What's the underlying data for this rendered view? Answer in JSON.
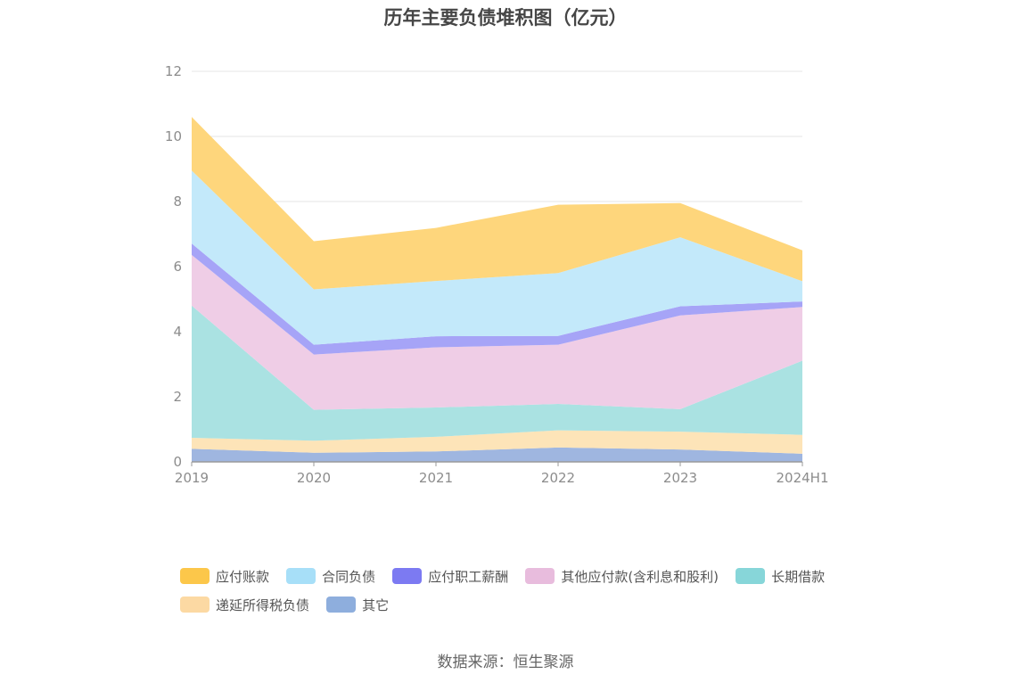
{
  "chart_data": {
    "type": "area",
    "stacked": true,
    "title": "历年主要负债堆积图（亿元）",
    "categories": [
      "2019",
      "2020",
      "2021",
      "2022",
      "2023",
      "2024H1"
    ],
    "ylim": [
      0,
      12
    ],
    "yticks": [
      0,
      2,
      4,
      6,
      8,
      10,
      12
    ],
    "grid": true,
    "legend_position": "bottom",
    "series": [
      {
        "name": "其它",
        "color": "#9fb6e0",
        "values": [
          0.4,
          0.28,
          0.32,
          0.44,
          0.38,
          0.25
        ]
      },
      {
        "name": "递延所得税负债",
        "color": "#fde4b8",
        "values": [
          0.34,
          0.37,
          0.45,
          0.53,
          0.55,
          0.58
        ]
      },
      {
        "name": "长期借款",
        "color": "#aae2e2",
        "values": [
          4.06,
          0.95,
          0.9,
          0.81,
          0.69,
          2.28
        ]
      },
      {
        "name": "其他应付款(含利息和股利)",
        "color": "#efcde6",
        "values": [
          1.56,
          1.7,
          1.85,
          1.82,
          2.88,
          1.65
        ]
      },
      {
        "name": "应付职工薪酬",
        "color": "#a6a4f7",
        "values": [
          0.35,
          0.3,
          0.34,
          0.27,
          0.28,
          0.17
        ]
      },
      {
        "name": "合同负债",
        "color": "#c3e9fa",
        "values": [
          2.24,
          1.7,
          1.7,
          1.93,
          2.12,
          0.62
        ]
      },
      {
        "name": "应付账款",
        "color": "#fed67c",
        "values": [
          1.65,
          1.48,
          1.63,
          2.1,
          1.05,
          0.95
        ]
      }
    ]
  },
  "legend": [
    {
      "label": "应付账款",
      "color": "#fcc74a"
    },
    {
      "label": "合同负债",
      "color": "#a7dff8"
    },
    {
      "label": "应付职工薪酬",
      "color": "#7c7af2"
    },
    {
      "label": "其他应付款(含利息和股利)",
      "color": "#e8bcdd"
    },
    {
      "label": "长期借款",
      "color": "#87d6d9"
    },
    {
      "label": "递延所得税负债",
      "color": "#fcd9a3"
    },
    {
      "label": "其它",
      "color": "#8eaedd"
    }
  ],
  "source": "数据来源：恒生聚源"
}
